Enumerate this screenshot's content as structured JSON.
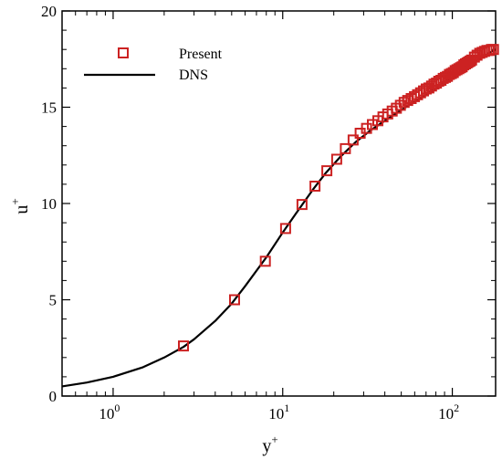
{
  "chart_data": {
    "type": "scatter",
    "title": "",
    "xlabel": "y",
    "xlabel_sup": "+",
    "ylabel": "u",
    "ylabel_sup": "+",
    "x_scale": "log",
    "xlim": [
      0.5,
      180
    ],
    "ylim": [
      0,
      20
    ],
    "grid": false,
    "legend_placement": "top-left",
    "x_ticks": [
      {
        "value": 1,
        "base": "10",
        "exp": "0"
      },
      {
        "value": 10,
        "base": "10",
        "exp": "1"
      },
      {
        "value": 100,
        "base": "10",
        "exp": "2"
      }
    ],
    "y_ticks": [
      {
        "value": 0,
        "label": "0"
      },
      {
        "value": 5,
        "label": "5"
      },
      {
        "value": 10,
        "label": "10"
      },
      {
        "value": 15,
        "label": "15"
      },
      {
        "value": 20,
        "label": "20"
      }
    ],
    "series": [
      {
        "name": "Present",
        "style": "markers",
        "marker": "square",
        "color": "#cc2222",
        "x": [
          2.6,
          5.2,
          7.9,
          10.4,
          13.0,
          15.5,
          18.2,
          20.8,
          23.4,
          26.0,
          28.6,
          31.2,
          33.8,
          36.4,
          39.0,
          41.6,
          44.2,
          46.8,
          49.4,
          52.0,
          54.6,
          57.2,
          59.8,
          62.4,
          65.0,
          67.6,
          70.2,
          72.8,
          75.4,
          78.0,
          80.6,
          83.2,
          85.8,
          88.4,
          91.0,
          93.6,
          96.2,
          98.8,
          101.4,
          104.0,
          106.6,
          109.2,
          111.8,
          114.4,
          117.0,
          119.6,
          122.2,
          124.8,
          127.4,
          130.0,
          135.0,
          140.0,
          145.0,
          150.0,
          155.0,
          160.0,
          165.0,
          170.0,
          175.0
        ],
        "y": [
          2.6,
          5.0,
          7.0,
          8.7,
          9.95,
          10.9,
          11.7,
          12.3,
          12.85,
          13.3,
          13.65,
          13.9,
          14.1,
          14.3,
          14.5,
          14.65,
          14.8,
          14.95,
          15.1,
          15.25,
          15.35,
          15.45,
          15.55,
          15.65,
          15.75,
          15.85,
          15.95,
          16.0,
          16.1,
          16.2,
          16.25,
          16.35,
          16.4,
          16.5,
          16.55,
          16.6,
          16.7,
          16.75,
          16.8,
          16.9,
          16.95,
          17.0,
          17.05,
          17.1,
          17.2,
          17.25,
          17.3,
          17.35,
          17.4,
          17.45,
          17.6,
          17.7,
          17.8,
          17.85,
          17.9,
          17.95,
          17.95,
          18.0,
          18.0
        ]
      },
      {
        "name": "DNS",
        "style": "line",
        "color": "#000000",
        "x": [
          0.5,
          0.7,
          1.0,
          1.5,
          2.0,
          2.6,
          3.0,
          4.0,
          5.0,
          6.0,
          8.0,
          10.0,
          12.0,
          15.0,
          18.0,
          22.0,
          27.0,
          33.0,
          40.0,
          50.0,
          60.0,
          70.0,
          80.0,
          100.0,
          120.0,
          140.0,
          160.0,
          180.0
        ],
        "y": [
          0.5,
          0.7,
          1.0,
          1.5,
          2.0,
          2.55,
          2.95,
          3.9,
          4.8,
          5.7,
          7.2,
          8.5,
          9.5,
          10.7,
          11.6,
          12.45,
          13.2,
          13.8,
          14.3,
          14.85,
          15.3,
          15.65,
          16.0,
          16.55,
          17.0,
          17.45,
          17.75,
          18.0
        ]
      }
    ]
  }
}
